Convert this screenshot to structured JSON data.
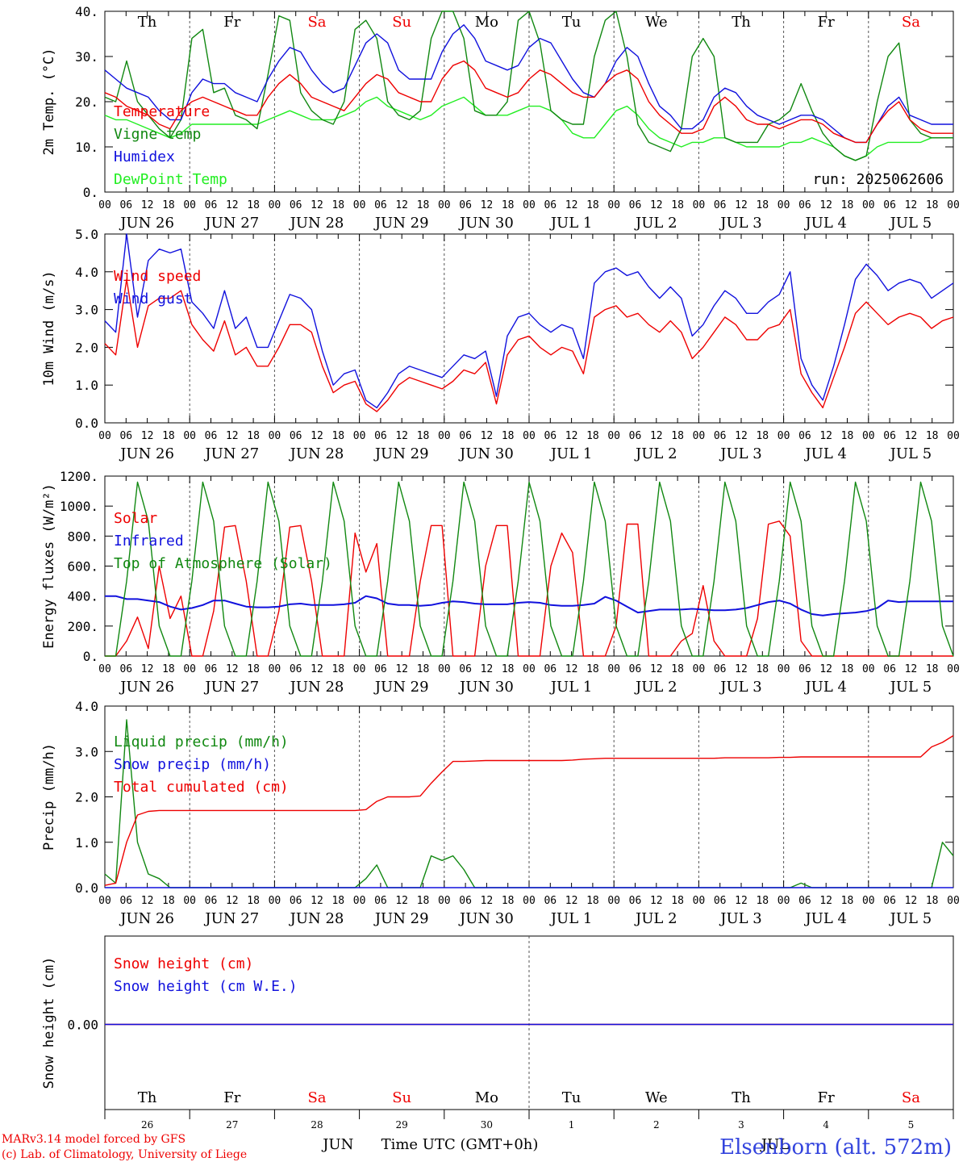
{
  "colors": {
    "red": "#ee0000",
    "green": "#118811",
    "blue": "#1111dd",
    "lightgreen": "#22ee22",
    "axis": "#000000",
    "station": "#3344dd"
  },
  "run_label": "run: 2025062606",
  "days_of_week": [
    "Th",
    "Fr",
    "Sa",
    "Su",
    "Mo",
    "Tu",
    "We",
    "Th",
    "Fr",
    "Sa"
  ],
  "weekend_indices": [
    2,
    3,
    9
  ],
  "date_labels": [
    "JUN 26",
    "JUN 27",
    "JUN 28",
    "JUN 29",
    "JUN 30",
    "JUL  1",
    "JUL  2",
    "JUL  3",
    "JUL  4",
    "JUL  5"
  ],
  "hour_ticks": [
    "00",
    "06",
    "12",
    "18"
  ],
  "final_hour_tick": "00",
  "bottom_day_numbers": [
    "26",
    "27",
    "28",
    "29",
    "30",
    "1",
    "2",
    "3",
    "4",
    "5"
  ],
  "month_labels": [
    "JUN",
    "JUL"
  ],
  "xlabel": "Time UTC (GMT+0h)",
  "footer": {
    "line1": "MARv3.14 model forced by GFS",
    "line2": "(c) Lab. of Climatology, University of Liege",
    "station": "Elsenborn (alt. 572m)"
  },
  "chart_data": [
    {
      "type": "line",
      "ylabel": "2m Temp. (°C)",
      "ylim": [
        0,
        40
      ],
      "yticks": [
        "0.",
        "10.",
        "20.",
        "30.",
        "40."
      ],
      "legend": [
        "Temperature",
        "Vigne temp",
        "Humidex",
        "DewPoint Temp"
      ],
      "series": [
        {
          "name": "Temperature",
          "color": "red",
          "values": [
            22,
            21,
            19,
            18,
            17,
            15,
            14,
            18,
            20,
            21,
            20,
            19,
            18,
            17,
            17,
            21,
            24,
            26,
            24,
            21,
            20,
            19,
            18,
            21,
            24,
            26,
            25,
            22,
            21,
            20,
            20,
            25,
            28,
            29,
            27,
            23,
            22,
            21,
            22,
            25,
            27,
            26,
            24,
            22,
            21,
            21,
            24,
            26,
            27,
            25,
            20,
            17,
            15,
            13,
            13,
            14,
            19,
            21,
            19,
            16,
            15,
            15,
            14,
            15,
            16,
            16,
            15,
            13,
            12,
            11,
            11,
            15,
            18,
            20,
            16,
            14,
            13,
            13,
            13
          ]
        },
        {
          "name": "Vigne temp",
          "color": "green",
          "values": [
            21,
            20,
            29,
            20,
            17,
            14,
            12,
            16,
            34,
            36,
            22,
            23,
            17,
            16,
            14,
            26,
            39,
            38,
            22,
            18,
            16,
            15,
            20,
            36,
            38,
            34,
            20,
            17,
            16,
            18,
            34,
            40,
            40,
            34,
            18,
            17,
            17,
            20,
            38,
            40,
            33,
            18,
            16,
            15,
            15,
            30,
            38,
            40,
            30,
            15,
            11,
            10,
            9,
            14,
            30,
            34,
            30,
            12,
            11,
            11,
            11,
            15,
            16,
            18,
            24,
            18,
            13,
            10,
            8,
            7,
            8,
            20,
            30,
            33,
            16,
            13,
            12,
            12,
            12
          ]
        },
        {
          "name": "Humidex",
          "color": "blue",
          "values": [
            27,
            25,
            23,
            22,
            21,
            18,
            16,
            16,
            22,
            25,
            24,
            24,
            22,
            21,
            20,
            25,
            29,
            32,
            31,
            27,
            24,
            22,
            23,
            28,
            33,
            35,
            33,
            27,
            25,
            25,
            25,
            31,
            35,
            37,
            34,
            29,
            28,
            27,
            28,
            32,
            34,
            33,
            29,
            25,
            22,
            21,
            24,
            29,
            32,
            30,
            24,
            19,
            17,
            14,
            14,
            16,
            21,
            23,
            22,
            19,
            17,
            16,
            15,
            16,
            17,
            17,
            16,
            14,
            12,
            11,
            11,
            15,
            19,
            21,
            17,
            16,
            15,
            15,
            15
          ]
        },
        {
          "name": "DewPoint Temp",
          "color": "lightgreen",
          "values": [
            17,
            16,
            16,
            15,
            14,
            13,
            12,
            13,
            15,
            15,
            15,
            15,
            15,
            15,
            15,
            16,
            17,
            18,
            17,
            16,
            16,
            16,
            17,
            18,
            20,
            21,
            19,
            18,
            17,
            16,
            17,
            19,
            20,
            21,
            19,
            17,
            17,
            17,
            18,
            19,
            19,
            18,
            16,
            13,
            12,
            12,
            15,
            18,
            19,
            17,
            14,
            12,
            11,
            10,
            11,
            11,
            12,
            12,
            11,
            10,
            10,
            10,
            10,
            11,
            11,
            12,
            11,
            10,
            8,
            7,
            8,
            10,
            11,
            11,
            11,
            11,
            12,
            12,
            12
          ]
        }
      ]
    },
    {
      "type": "line",
      "ylabel": "10m Wind (m/s)",
      "ylim": [
        0,
        5
      ],
      "yticks": [
        "0.0",
        "1.0",
        "2.0",
        "3.0",
        "4.0",
        "5.0"
      ],
      "legend": [
        "Wind speed",
        "Wind gust"
      ],
      "series": [
        {
          "name": "Wind speed",
          "color": "red",
          "values": [
            2.1,
            1.8,
            3.8,
            2.0,
            3.1,
            3.3,
            3.3,
            3.5,
            2.6,
            2.2,
            1.9,
            2.7,
            1.8,
            2.0,
            1.5,
            1.5,
            2.0,
            2.6,
            2.6,
            2.4,
            1.5,
            0.8,
            1.0,
            1.1,
            0.5,
            0.3,
            0.6,
            1.0,
            1.2,
            1.1,
            1.0,
            0.9,
            1.1,
            1.4,
            1.3,
            1.6,
            0.5,
            1.8,
            2.2,
            2.3,
            2.0,
            1.8,
            2.0,
            1.9,
            1.3,
            2.8,
            3.0,
            3.1,
            2.8,
            2.9,
            2.6,
            2.4,
            2.7,
            2.4,
            1.7,
            2.0,
            2.4,
            2.8,
            2.6,
            2.2,
            2.2,
            2.5,
            2.6,
            3.0,
            1.3,
            0.8,
            0.4,
            1.2,
            2.0,
            2.9,
            3.2,
            2.9,
            2.6,
            2.8,
            2.9,
            2.8,
            2.5,
            2.7,
            2.8
          ]
        },
        {
          "name": "Wind gust",
          "color": "blue",
          "values": [
            2.7,
            2.4,
            5.0,
            2.8,
            4.3,
            4.6,
            4.5,
            4.6,
            3.2,
            2.9,
            2.5,
            3.5,
            2.5,
            2.8,
            2.0,
            2.0,
            2.7,
            3.4,
            3.3,
            3.0,
            1.9,
            1.0,
            1.3,
            1.4,
            0.6,
            0.4,
            0.8,
            1.3,
            1.5,
            1.4,
            1.3,
            1.2,
            1.5,
            1.8,
            1.7,
            1.9,
            0.7,
            2.3,
            2.8,
            2.9,
            2.6,
            2.4,
            2.6,
            2.5,
            1.7,
            3.7,
            4.0,
            4.1,
            3.9,
            4.0,
            3.6,
            3.3,
            3.6,
            3.3,
            2.3,
            2.6,
            3.1,
            3.5,
            3.3,
            2.9,
            2.9,
            3.2,
            3.4,
            4.0,
            1.7,
            1.0,
            0.6,
            1.5,
            2.6,
            3.8,
            4.2,
            3.9,
            3.5,
            3.7,
            3.8,
            3.7,
            3.3,
            3.5,
            3.7
          ]
        }
      ]
    },
    {
      "type": "line",
      "ylabel": "Energy fluxes (W/m²)",
      "ylim": [
        0,
        1200
      ],
      "yticks": [
        "0.",
        "200.",
        "400.",
        "600.",
        "800.",
        "1000.",
        "1200."
      ],
      "legend": [
        "Solar",
        "Infrared",
        "Top of Atmosphere (Solar)"
      ],
      "series": [
        {
          "name": "Solar",
          "color": "red",
          "values": [
            0,
            0,
            100,
            260,
            50,
            600,
            250,
            400,
            0,
            0,
            300,
            860,
            870,
            500,
            0,
            0,
            300,
            860,
            870,
            500,
            0,
            0,
            0,
            820,
            560,
            750,
            0,
            0,
            0,
            500,
            870,
            870,
            0,
            0,
            0,
            600,
            870,
            870,
            0,
            0,
            0,
            600,
            820,
            690,
            0,
            0,
            0,
            200,
            880,
            880,
            0,
            0,
            0,
            100,
            150,
            470,
            100,
            0,
            0,
            0,
            250,
            880,
            900,
            800,
            100,
            0,
            0,
            0,
            0,
            0,
            0,
            0,
            0,
            0,
            0,
            0,
            0,
            0,
            0
          ]
        },
        {
          "name": "Infrared",
          "color": "blue",
          "values": [
            400,
            400,
            380,
            380,
            370,
            360,
            330,
            310,
            320,
            340,
            370,
            370,
            350,
            330,
            325,
            325,
            330,
            345,
            350,
            340,
            340,
            340,
            345,
            355,
            400,
            385,
            350,
            340,
            340,
            335,
            340,
            355,
            365,
            360,
            350,
            345,
            345,
            345,
            355,
            360,
            355,
            340,
            335,
            335,
            340,
            350,
            395,
            370,
            330,
            290,
            300,
            310,
            310,
            310,
            315,
            310,
            305,
            305,
            310,
            320,
            340,
            360,
            370,
            350,
            310,
            280,
            270,
            280,
            285,
            290,
            300,
            320,
            370,
            360,
            365,
            365,
            365,
            365,
            365
          ]
        },
        {
          "name": "Top of Atmosphere (Solar)",
          "color": "green",
          "values": [
            0,
            0,
            500,
            1160,
            900,
            200,
            0,
            0,
            500,
            1160,
            900,
            200,
            0,
            0,
            500,
            1160,
            900,
            200,
            0,
            0,
            500,
            1160,
            900,
            200,
            0,
            0,
            500,
            1160,
            900,
            200,
            0,
            0,
            500,
            1160,
            900,
            200,
            0,
            0,
            500,
            1160,
            900,
            200,
            0,
            0,
            500,
            1160,
            900,
            200,
            0,
            0,
            500,
            1160,
            900,
            200,
            0,
            0,
            500,
            1160,
            900,
            200,
            0,
            0,
            500,
            1160,
            900,
            200,
            0,
            0,
            500,
            1160,
            900,
            200,
            0,
            0,
            500,
            1160,
            900,
            200,
            0
          ]
        }
      ]
    },
    {
      "type": "line",
      "ylabel": "Precip (mm/h)",
      "ylim": [
        0,
        4
      ],
      "yticks": [
        "0.0",
        "1.0",
        "2.0",
        "3.0",
        "4.0"
      ],
      "legend": [
        "Liquid precip (mm/h)",
        "Snow precip (mm/h)",
        "Total cumulated (cm)"
      ],
      "series": [
        {
          "name": "Liquid precip (mm/h)",
          "color": "green",
          "values": [
            0.3,
            0.1,
            3.7,
            1.0,
            0.3,
            0.2,
            0,
            0,
            0,
            0,
            0,
            0,
            0,
            0,
            0,
            0,
            0,
            0,
            0,
            0,
            0,
            0,
            0,
            0,
            0.2,
            0.5,
            0,
            0,
            0,
            0,
            0.7,
            0.6,
            0.7,
            0.4,
            0,
            0,
            0,
            0,
            0,
            0,
            0,
            0,
            0,
            0,
            0,
            0,
            0,
            0,
            0,
            0,
            0,
            0,
            0,
            0,
            0,
            0,
            0,
            0,
            0,
            0,
            0,
            0,
            0,
            0,
            0.1,
            0,
            0,
            0,
            0,
            0,
            0,
            0,
            0,
            0,
            0,
            0,
            0,
            1.0,
            0.7
          ]
        },
        {
          "name": "Snow precip (mm/h)",
          "color": "blue",
          "values": [
            0,
            0,
            0,
            0,
            0,
            0,
            0,
            0,
            0,
            0,
            0,
            0,
            0,
            0,
            0,
            0,
            0,
            0,
            0,
            0,
            0,
            0,
            0,
            0,
            0,
            0,
            0,
            0,
            0,
            0,
            0,
            0,
            0,
            0,
            0,
            0,
            0,
            0,
            0,
            0,
            0,
            0,
            0,
            0,
            0,
            0,
            0,
            0,
            0,
            0,
            0,
            0,
            0,
            0,
            0,
            0,
            0,
            0,
            0,
            0,
            0,
            0,
            0,
            0,
            0,
            0,
            0,
            0,
            0,
            0,
            0,
            0,
            0,
            0,
            0,
            0,
            0,
            0,
            0
          ]
        },
        {
          "name": "Total cumulated (cm)",
          "color": "red",
          "values": [
            0.05,
            0.1,
            1.0,
            1.6,
            1.68,
            1.7,
            1.7,
            1.7,
            1.7,
            1.7,
            1.7,
            1.7,
            1.7,
            1.7,
            1.7,
            1.7,
            1.7,
            1.7,
            1.7,
            1.7,
            1.7,
            1.7,
            1.7,
            1.7,
            1.72,
            1.9,
            2.0,
            2.0,
            2.0,
            2.02,
            2.3,
            2.55,
            2.78,
            2.78,
            2.79,
            2.8,
            2.8,
            2.8,
            2.8,
            2.8,
            2.8,
            2.8,
            2.8,
            2.81,
            2.83,
            2.84,
            2.85,
            2.85,
            2.85,
            2.85,
            2.85,
            2.85,
            2.85,
            2.85,
            2.85,
            2.85,
            2.85,
            2.86,
            2.86,
            2.86,
            2.86,
            2.86,
            2.87,
            2.87,
            2.88,
            2.88,
            2.88,
            2.88,
            2.88,
            2.88,
            2.88,
            2.88,
            2.88,
            2.88,
            2.88,
            2.88,
            3.1,
            3.2,
            3.35
          ]
        }
      ]
    },
    {
      "type": "line",
      "ylabel": "Snow height (cm)",
      "yticks": [
        "0.00"
      ],
      "legend": [
        "Snow height (cm)",
        "Snow height (cm W.E.)"
      ],
      "series": [
        {
          "name": "Snow height (cm)",
          "color": "red",
          "values": [
            0,
            0
          ]
        },
        {
          "name": "Snow height (cm W.E.)",
          "color": "blue",
          "values": [
            0,
            0
          ]
        }
      ]
    }
  ]
}
